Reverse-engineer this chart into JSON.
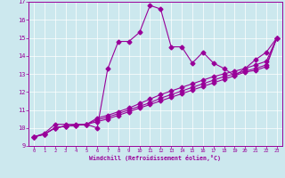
{
  "xlabel": "Windchill (Refroidissement éolien,°C)",
  "bg_color": "#cce8ee",
  "line_color": "#990099",
  "xlim": [
    -0.5,
    23.5
  ],
  "ylim": [
    9,
    17
  ],
  "xticks": [
    0,
    1,
    2,
    3,
    4,
    5,
    6,
    7,
    8,
    9,
    10,
    11,
    12,
    13,
    14,
    15,
    16,
    17,
    18,
    19,
    20,
    21,
    22,
    23
  ],
  "yticks": [
    9,
    10,
    11,
    12,
    13,
    14,
    15,
    16,
    17
  ],
  "series1_x": [
    0,
    1,
    2,
    3,
    4,
    5,
    6,
    7,
    8,
    9,
    10,
    11,
    12,
    13,
    14,
    15,
    16,
    17,
    18,
    19,
    20,
    21,
    22,
    23
  ],
  "series1_y": [
    9.5,
    9.7,
    10.2,
    10.2,
    10.2,
    10.2,
    10.0,
    13.3,
    14.8,
    14.8,
    15.3,
    16.8,
    16.6,
    14.5,
    14.5,
    13.6,
    14.2,
    13.6,
    13.3,
    12.9,
    13.3,
    13.8,
    14.2,
    15.0
  ],
  "series2_x": [
    0,
    1,
    2,
    3,
    4,
    5,
    6,
    7,
    8,
    9,
    10,
    11,
    12,
    13,
    14,
    15,
    16,
    17,
    18,
    19,
    20,
    21,
    22,
    23
  ],
  "series2_y": [
    9.5,
    9.65,
    10.0,
    10.1,
    10.15,
    10.2,
    10.55,
    10.7,
    10.9,
    11.1,
    11.35,
    11.6,
    11.85,
    12.05,
    12.25,
    12.45,
    12.65,
    12.85,
    13.0,
    13.15,
    13.3,
    13.5,
    13.7,
    15.0
  ],
  "series3_x": [
    0,
    1,
    2,
    3,
    4,
    5,
    6,
    7,
    8,
    9,
    10,
    11,
    12,
    13,
    14,
    15,
    16,
    17,
    18,
    19,
    20,
    21,
    22,
    23
  ],
  "series3_y": [
    9.5,
    9.65,
    10.0,
    10.1,
    10.15,
    10.2,
    10.45,
    10.6,
    10.8,
    11.0,
    11.2,
    11.4,
    11.65,
    11.85,
    12.05,
    12.25,
    12.45,
    12.65,
    12.85,
    13.0,
    13.15,
    13.3,
    13.5,
    15.0
  ],
  "series4_x": [
    0,
    1,
    2,
    3,
    4,
    5,
    6,
    7,
    8,
    9,
    10,
    11,
    12,
    13,
    14,
    15,
    16,
    17,
    18,
    19,
    20,
    21,
    22,
    23
  ],
  "series4_y": [
    9.5,
    9.65,
    10.0,
    10.1,
    10.15,
    10.2,
    10.35,
    10.5,
    10.7,
    10.9,
    11.1,
    11.3,
    11.5,
    11.7,
    11.9,
    12.1,
    12.3,
    12.5,
    12.7,
    12.9,
    13.1,
    13.2,
    13.4,
    15.0
  ]
}
